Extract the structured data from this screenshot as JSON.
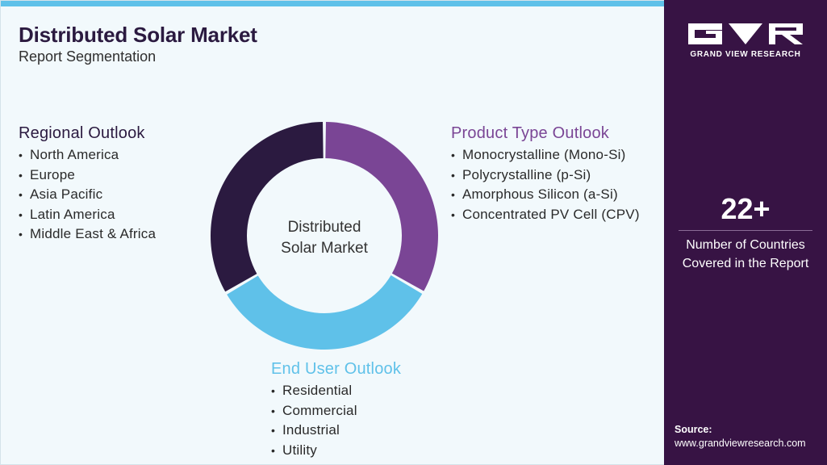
{
  "header": {
    "title": "Distributed Solar Market",
    "subtitle": "Report Segmentation"
  },
  "diagram": {
    "center_label_line1": "Distributed",
    "center_label_line2": "Solar Market",
    "segments": [
      {
        "color": "#7a4595",
        "share": 0.333
      },
      {
        "color": "#5fc1e9",
        "share": 0.333
      },
      {
        "color": "#2b1a40",
        "share": 0.334
      }
    ]
  },
  "regional": {
    "heading": "Regional Outlook",
    "items": [
      "North America",
      "Europe",
      "Asia Pacific",
      "Latin America",
      "Middle East & Africa"
    ]
  },
  "product": {
    "heading": "Product Type Outlook",
    "items": [
      "Monocrystalline (Mono-Si)",
      "Polycrystalline (p-Si)",
      "Amorphous Silicon (a-Si)",
      "Concentrated PV Cell (CPV)"
    ]
  },
  "enduser": {
    "heading": "End User Outlook",
    "items": [
      "Residential",
      "Commercial",
      "Industrial",
      "Utility"
    ]
  },
  "sidebar": {
    "brand": "GRAND VIEW RESEARCH",
    "stat_value": "22+",
    "stat_label_line1": "Number of Countries",
    "stat_label_line2": "Covered in the Report",
    "source_label": "Source:",
    "source_url": "www.grandviewresearch.com"
  },
  "colors": {
    "accent_blue": "#5fc1e9",
    "accent_purple": "#7a4595",
    "dark_purple": "#2b1a40",
    "sidebar_bg": "#371344"
  }
}
